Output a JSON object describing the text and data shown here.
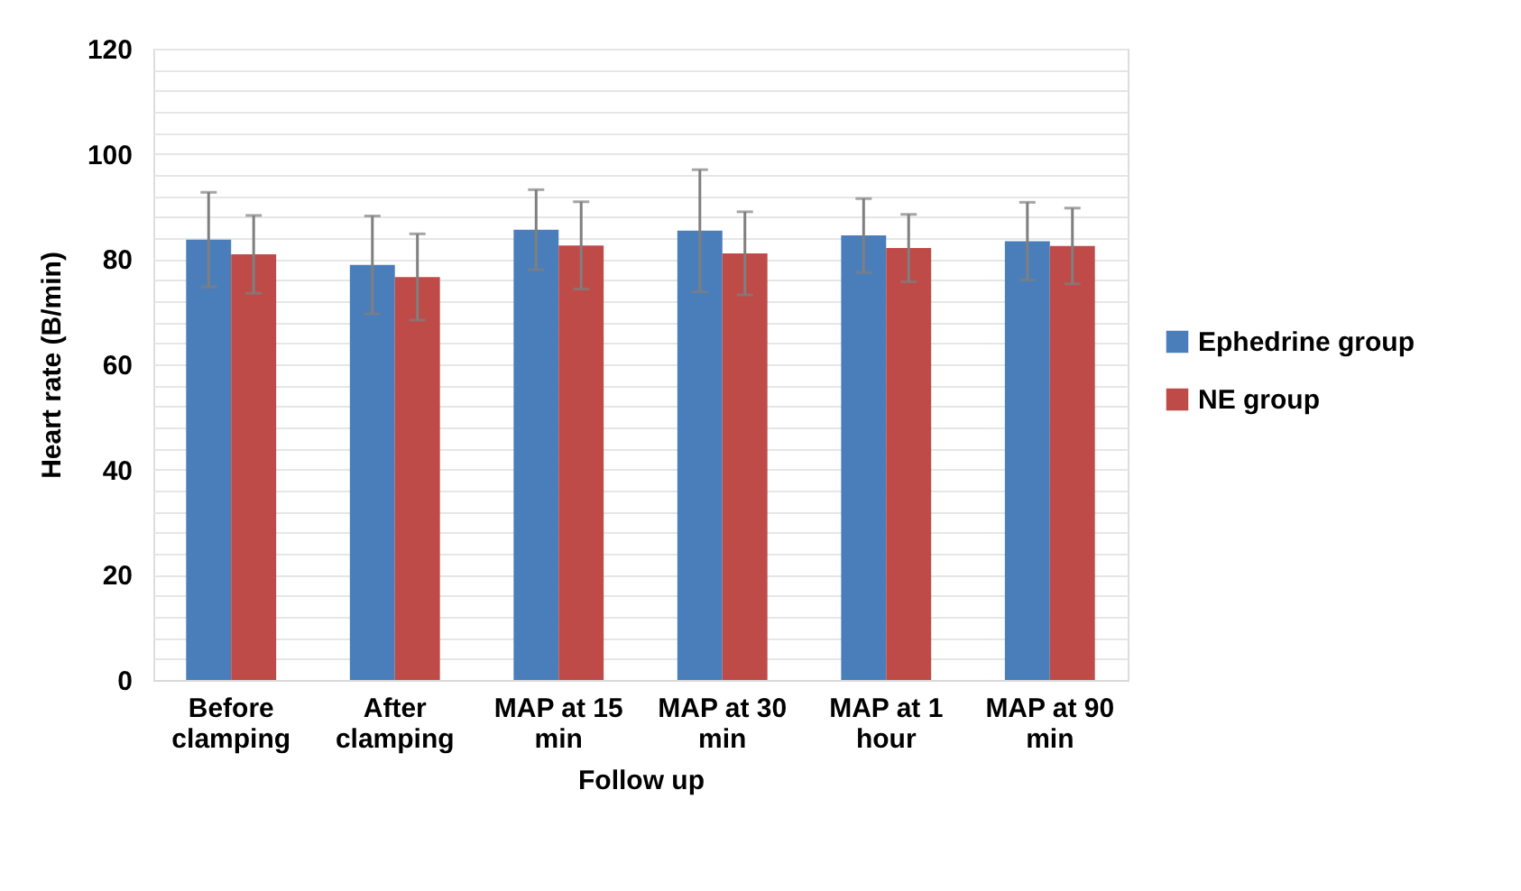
{
  "chart_data": {
    "type": "bar",
    "xlabel": "Follow up",
    "ylabel": "Heart rate (B/min)",
    "categories": [
      "Before clamping",
      "After clamping",
      "MAP at 15 min",
      "MAP at 30 min",
      "MAP at 1 hour",
      "MAP at 90 min"
    ],
    "series": [
      {
        "name": "Ephedrine group",
        "color": "#4a7ebb",
        "values": [
          83.7,
          78.9,
          85.6,
          85.4,
          84.5,
          83.4
        ],
        "errors": [
          9,
          9.3,
          7.6,
          11.6,
          7.0,
          7.4
        ]
      },
      {
        "name": "NE group",
        "color": "#be4b48",
        "values": [
          80.9,
          76.6,
          82.6,
          81.1,
          82.1,
          82.5
        ],
        "errors": [
          7.4,
          8.2,
          8.3,
          7.9,
          6.4,
          7.2
        ]
      }
    ],
    "ylim": [
      0,
      120
    ],
    "yticks": [
      0,
      {
        "value": 4,
        "label": null
      },
      {
        "value": 8,
        "label": null
      },
      {
        "value": 12,
        "label": null
      },
      {
        "value": 16,
        "label": null
      },
      20,
      {
        "value": 24,
        "label": null
      },
      {
        "value": 28,
        "label": null
      },
      {
        "value": 32,
        "label": null
      },
      {
        "value": 36,
        "label": null
      },
      40,
      {
        "value": 44,
        "label": null
      },
      {
        "value": 48,
        "label": null
      },
      {
        "value": 52,
        "label": null
      },
      {
        "value": 56,
        "label": null
      },
      60,
      {
        "value": 64,
        "label": null
      },
      {
        "value": 68,
        "label": null
      },
      {
        "value": 72,
        "label": null
      },
      {
        "value": 76,
        "label": null
      },
      80,
      {
        "value": 84,
        "label": null
      },
      {
        "value": 88,
        "label": null
      },
      {
        "value": 92,
        "label": null
      },
      {
        "value": 96,
        "label": null
      },
      100,
      {
        "value": 104,
        "label": null
      },
      {
        "value": 108,
        "label": null
      },
      {
        "value": 112,
        "label": null
      },
      {
        "value": 116,
        "label": null
      },
      120
    ],
    "grid": "y",
    "legend": "right"
  }
}
